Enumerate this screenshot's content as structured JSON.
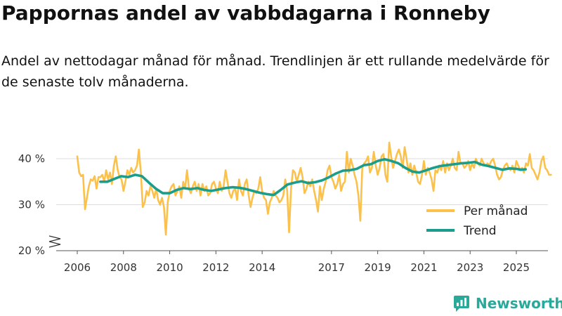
{
  "title": "Pappornas andel av vabbdagarna i Ronneby",
  "subtitle": "Andel av nettodagar månad för månad. Trendlinjen är ett rullande medelvärde för de senaste tolv månaderna.",
  "brand": "Newsworthy",
  "colors": {
    "monthly": "#fbc14b",
    "trend": "#1a9d8b",
    "grid": "#dddddd",
    "axis": "#555555",
    "brand": "#2aa89a"
  },
  "chart_data": {
    "type": "line",
    "title": "Pappornas andel av vabbdagarna i Ronneby",
    "xlabel": "",
    "ylabel": "",
    "ylim": [
      20,
      43
    ],
    "y_ticks": [
      20,
      30,
      40
    ],
    "y_tick_labels": [
      "20 %",
      "30 %",
      "40 %"
    ],
    "x_ticks": [
      2006,
      2008,
      2010,
      2012,
      2014,
      2017,
      2019,
      2021,
      2023,
      2025
    ],
    "x_tick_labels": [
      "2006",
      "2008",
      "2010",
      "2012",
      "2014",
      "2017",
      "2019",
      "2021",
      "2023",
      "2025"
    ],
    "axis_break": true,
    "grid": true,
    "legend_position": "right",
    "series": [
      {
        "name": "Per månad",
        "key": "monthly",
        "x_start": 2006.0,
        "step": 0.08333,
        "values": [
          40.5,
          37.0,
          36.2,
          36.5,
          29.0,
          31.5,
          34.0,
          35.5,
          35.2,
          36.2,
          33.5,
          36.0,
          36.0,
          36.5,
          35.0,
          37.5,
          35.5,
          37.0,
          34.5,
          38.5,
          40.5,
          37.5,
          36.0,
          35.5,
          33.0,
          35.0,
          37.5,
          36.5,
          38.0,
          37.0,
          37.5,
          38.5,
          42.0,
          37.0,
          29.5,
          30.5,
          33.0,
          32.0,
          34.0,
          33.0,
          31.5,
          33.5,
          31.0,
          30.0,
          31.5,
          29.5,
          23.5,
          30.5,
          33.0,
          34.0,
          34.5,
          32.0,
          33.0,
          34.0,
          31.5,
          35.0,
          33.5,
          37.5,
          33.5,
          32.5,
          34.0,
          35.0,
          33.0,
          34.5,
          32.0,
          34.5,
          33.0,
          34.0,
          32.0,
          32.5,
          34.5,
          35.0,
          33.5,
          32.5,
          35.0,
          33.0,
          34.0,
          37.5,
          35.0,
          32.5,
          31.5,
          33.0,
          33.5,
          31.0,
          35.5,
          33.0,
          32.0,
          34.5,
          35.5,
          32.0,
          29.5,
          31.5,
          33.0,
          32.5,
          33.5,
          36.0,
          33.0,
          31.5,
          31.0,
          28.0,
          30.5,
          31.5,
          33.0,
          32.0,
          31.5,
          30.5,
          31.0,
          32.0,
          35.5,
          33.0,
          24.0,
          33.5,
          37.5,
          37.0,
          35.0,
          36.5,
          38.0,
          36.0,
          32.5,
          33.5,
          35.0,
          34.0,
          35.5,
          33.0,
          31.0,
          28.5,
          34.0,
          31.0,
          33.5,
          35.0,
          37.5,
          38.5,
          36.0,
          35.0,
          33.5,
          34.5,
          36.5,
          33.0,
          34.5,
          35.0,
          41.5,
          37.0,
          40.0,
          38.5,
          36.5,
          35.0,
          32.0,
          26.5,
          38.0,
          39.0,
          39.5,
          40.5,
          37.0,
          38.0,
          41.5,
          38.5,
          36.5,
          38.0,
          40.5,
          41.0,
          36.5,
          35.0,
          43.5,
          40.5,
          38.0,
          39.5,
          41.0,
          42.0,
          40.5,
          38.0,
          42.5,
          40.0,
          37.0,
          39.0,
          36.5,
          38.5,
          37.0,
          35.0,
          34.5,
          36.5,
          39.5,
          36.5,
          38.0,
          37.0,
          35.5,
          33.0,
          37.5,
          37.0,
          38.5,
          37.5,
          39.5,
          37.0,
          39.0,
          37.5,
          38.5,
          40.0,
          38.0,
          37.5,
          41.5,
          39.0,
          39.0,
          38.0,
          38.5,
          39.5,
          37.5,
          39.0,
          38.0,
          40.0,
          39.0,
          38.5,
          40.0,
          39.0,
          38.5,
          39.0,
          38.5,
          39.5,
          40.0,
          38.5,
          36.5,
          35.5,
          36.0,
          37.5,
          38.5,
          39.0,
          38.0,
          37.5,
          38.5,
          37.0,
          39.5,
          38.5,
          37.5,
          38.0,
          37.0,
          39.0,
          38.5,
          41.0,
          38.0,
          37.5,
          36.5,
          35.5,
          37.0,
          39.5,
          40.5,
          38.0,
          37.5,
          36.5,
          36.5
        ]
      },
      {
        "name": "Trend",
        "key": "trend",
        "x": [
          2007.0,
          2007.3,
          2007.6,
          2007.9,
          2008.2,
          2008.5,
          2008.8,
          2009.1,
          2009.4,
          2009.7,
          2010.0,
          2010.3,
          2010.6,
          2010.9,
          2011.2,
          2011.5,
          2011.8,
          2012.1,
          2012.4,
          2012.7,
          2013.0,
          2013.3,
          2013.6,
          2013.9,
          2014.2,
          2014.5,
          2014.8,
          2015.1,
          2015.4,
          2015.7,
          2016.0,
          2016.3,
          2016.6,
          2016.9,
          2017.2,
          2017.5,
          2017.8,
          2018.1,
          2018.4,
          2018.7,
          2019.0,
          2019.3,
          2019.6,
          2019.9,
          2020.2,
          2020.5,
          2020.8,
          2021.1,
          2021.4,
          2021.7,
          2022.0,
          2022.3,
          2022.6,
          2022.9,
          2023.2,
          2023.5,
          2023.8,
          2024.1,
          2024.4,
          2024.7,
          2025.0,
          2025.2,
          2025.4
        ],
        "values": [
          35.0,
          35.0,
          35.6,
          36.2,
          36.0,
          36.5,
          36.2,
          34.8,
          33.5,
          32.5,
          32.5,
          33.2,
          33.6,
          33.4,
          33.6,
          33.2,
          33.0,
          33.3,
          33.6,
          33.8,
          33.7,
          33.4,
          33.0,
          32.6,
          32.3,
          32.1,
          33.2,
          34.4,
          34.8,
          35.1,
          34.7,
          34.9,
          35.3,
          36.0,
          36.8,
          37.4,
          37.5,
          37.8,
          38.6,
          38.8,
          39.5,
          39.9,
          39.5,
          39.0,
          38.0,
          37.2,
          37.0,
          37.5,
          38.0,
          38.4,
          38.6,
          38.8,
          39.0,
          39.1,
          39.3,
          38.7,
          38.4,
          38.0,
          37.6,
          37.9,
          37.8,
          37.6,
          37.7
        ]
      }
    ]
  }
}
